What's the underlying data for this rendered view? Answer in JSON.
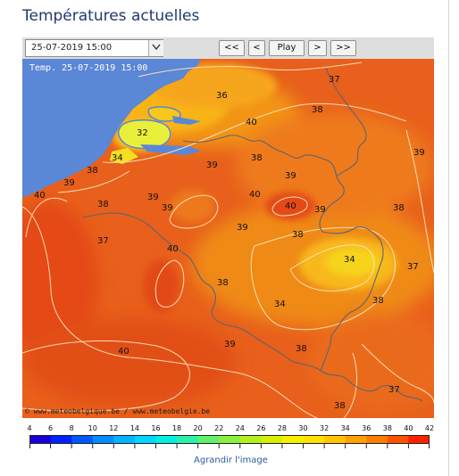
{
  "page_title": "Températures actuelles",
  "controls": {
    "selected_time": "25-07-2019 15:00",
    "btn_first": "<<",
    "btn_prev": "<",
    "btn_play": "Play",
    "btn_next": ">",
    "btn_last": ">>"
  },
  "map": {
    "overlay_label": "Temp. 25-07-2019 15:00",
    "credit": "© www.meteobelgique.be / www.meteobelgie.be",
    "sea_color": "#5a87d6",
    "isotherm_labels": [
      "37",
      "36",
      "38",
      "40",
      "32",
      "34",
      "39",
      "38",
      "39",
      "38",
      "39",
      "39",
      "40",
      "39",
      "40",
      "38",
      "39",
      "40",
      "38",
      "37",
      "40",
      "39",
      "39",
      "38",
      "38",
      "34",
      "37",
      "38",
      "34",
      "39",
      "38",
      "40",
      "37",
      "38"
    ]
  },
  "color_scale": {
    "tick_labels": [
      "4",
      "6",
      "8",
      "10",
      "12",
      "14",
      "16",
      "18",
      "20",
      "22",
      "24",
      "26",
      "28",
      "30",
      "32",
      "34",
      "36",
      "38",
      "40",
      "42"
    ],
    "colors": [
      "#1a00d8",
      "#0022ff",
      "#0058ff",
      "#008cff",
      "#00b4ff",
      "#00d6ff",
      "#00f0e0",
      "#2cf0a8",
      "#60f070",
      "#8cf040",
      "#b4f020",
      "#d8f000",
      "#f4f000",
      "#ffe000",
      "#ffc400",
      "#ffa000",
      "#ff7c00",
      "#ff5200",
      "#ff2000"
    ]
  },
  "enlarge_link": "Agrandir l'image"
}
